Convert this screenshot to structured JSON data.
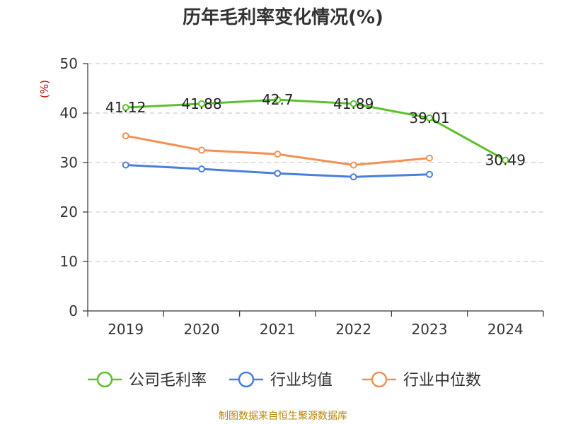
{
  "title": "历年毛利率变化情况(%)",
  "footer": "制图数据来自恒生聚源数据库",
  "colors": {
    "company": "#5cc12a",
    "industry_avg": "#4a7fdc",
    "industry_median": "#f39155",
    "grid": "#cccccc",
    "axis": "#333333",
    "footer": "#b8860b",
    "ylabel": "#cc0000"
  },
  "chart_data": {
    "type": "line",
    "title": "历年毛利率变化情况(%)",
    "xlabel": "",
    "ylabel": "(%)",
    "categories": [
      "2019",
      "2020",
      "2021",
      "2022",
      "2023",
      "2024"
    ],
    "ylim": [
      0,
      50
    ],
    "yticks": [
      0,
      10,
      20,
      30,
      40,
      50
    ],
    "grid": true,
    "legend_position": "bottom",
    "series": [
      {
        "name": "公司毛利率",
        "values": [
          41.12,
          41.88,
          42.7,
          41.89,
          39.01,
          30.49
        ],
        "labels": [
          "41.12",
          "41.88",
          "42.7",
          "41.89",
          "39.01",
          "30.49"
        ]
      },
      {
        "name": "行业均值",
        "values": [
          29.5,
          28.7,
          27.8,
          27.1,
          27.6,
          null
        ]
      },
      {
        "name": "行业中位数",
        "values": [
          35.4,
          32.5,
          31.7,
          29.5,
          30.9,
          null
        ]
      }
    ]
  }
}
